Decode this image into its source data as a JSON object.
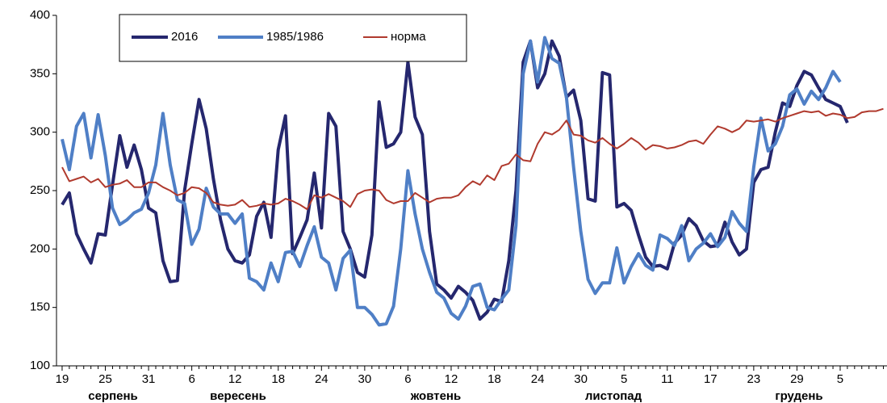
{
  "chart_data": {
    "type": "line",
    "categories": [
      "19",
      null,
      null,
      null,
      null,
      null,
      "25",
      null,
      null,
      null,
      null,
      null,
      "31",
      null,
      null,
      null,
      null,
      null,
      "6",
      null,
      null,
      null,
      null,
      null,
      "12",
      null,
      null,
      null,
      null,
      null,
      "18",
      null,
      null,
      null,
      null,
      null,
      "24",
      null,
      null,
      null,
      null,
      null,
      "30",
      null,
      null,
      null,
      null,
      null,
      "6",
      null,
      null,
      null,
      null,
      null,
      "12",
      null,
      null,
      null,
      null,
      null,
      "18",
      null,
      null,
      null,
      null,
      null,
      "24",
      null,
      null,
      null,
      null,
      null,
      "30",
      null,
      null,
      null,
      null,
      null,
      "5",
      null,
      null,
      null,
      null,
      null,
      "11",
      null,
      null,
      null,
      null,
      null,
      "17",
      null,
      null,
      null,
      null,
      null,
      "23",
      null,
      null,
      null,
      null,
      null,
      "29",
      null,
      null,
      null,
      null,
      null,
      "5",
      null,
      null,
      null,
      null,
      null,
      null
    ],
    "group_labels": [
      "серпень",
      "вересень",
      "жовтень",
      "листопад",
      "грудень"
    ],
    "series": [
      {
        "name": "2016",
        "color": "#25276e",
        "values": [
          238,
          248,
          213,
          200,
          188,
          213,
          212,
          255,
          297,
          270,
          289,
          268,
          235,
          231,
          190,
          172,
          173,
          250,
          290,
          328,
          303,
          260,
          225,
          200,
          190,
          188,
          195,
          228,
          240,
          210,
          285,
          314,
          196,
          210,
          225,
          265,
          218,
          316,
          305,
          215,
          200,
          180,
          176,
          212,
          326,
          287,
          290,
          300,
          360,
          313,
          298,
          215,
          170,
          165,
          158,
          168,
          163,
          156,
          140,
          146,
          157,
          155,
          190,
          250,
          360,
          378,
          338,
          350,
          378,
          365,
          330,
          336,
          310,
          243,
          241,
          351,
          349,
          236,
          239,
          233,
          212,
          193,
          185,
          186,
          183,
          205,
          212,
          226,
          220,
          207,
          202,
          203,
          223,
          206,
          195,
          200,
          257,
          268,
          270,
          300,
          325,
          322,
          340,
          352,
          349,
          338,
          328,
          325,
          322,
          308,
          null,
          null,
          null,
          null,
          null
        ]
      },
      {
        "name": "1985/1986",
        "color": "#4f7fc6",
        "values": [
          294,
          268,
          305,
          316,
          278,
          315,
          280,
          235,
          221,
          225,
          231,
          234,
          248,
          272,
          316,
          272,
          242,
          239,
          204,
          217,
          252,
          236,
          230,
          230,
          222,
          230,
          175,
          172,
          165,
          188,
          172,
          197,
          198,
          185,
          203,
          219,
          193,
          188,
          165,
          192,
          199,
          150,
          150,
          144,
          135,
          136,
          151,
          200,
          267,
          230,
          200,
          180,
          163,
          158,
          145,
          140,
          151,
          168,
          170,
          150,
          148,
          157,
          165,
          220,
          350,
          378,
          343,
          381,
          363,
          359,
          330,
          270,
          215,
          174,
          162,
          171,
          171,
          201,
          171,
          185,
          196,
          186,
          182,
          212,
          209,
          203,
          220,
          190,
          200,
          205,
          213,
          202,
          210,
          232,
          222,
          215,
          270,
          312,
          284,
          290,
          305,
          332,
          337,
          324,
          335,
          328,
          338,
          352,
          343,
          null,
          null,
          null,
          null,
          null,
          null
        ]
      },
      {
        "name": "норма",
        "color": "#b03a2e",
        "values": [
          270,
          258,
          260,
          262,
          257,
          260,
          253,
          255,
          256,
          259,
          253,
          253,
          257,
          257,
          253,
          250,
          246,
          248,
          253,
          252,
          248,
          240,
          238,
          237,
          238,
          242,
          236,
          237,
          239,
          238,
          239,
          243,
          241,
          238,
          234,
          246,
          244,
          247,
          244,
          241,
          236,
          247,
          250,
          251,
          250,
          242,
          239,
          241,
          241,
          248,
          244,
          240,
          243,
          244,
          244,
          246,
          253,
          258,
          255,
          263,
          259,
          271,
          273,
          281,
          276,
          275,
          290,
          300,
          298,
          302,
          310,
          298,
          297,
          293,
          291,
          295,
          290,
          286,
          290,
          295,
          291,
          285,
          289,
          288,
          286,
          287,
          289,
          292,
          293,
          290,
          298,
          305,
          303,
          300,
          303,
          310,
          309,
          310,
          311,
          309,
          312,
          314,
          316,
          318,
          317,
          318,
          314,
          316,
          315,
          312,
          313,
          317,
          318,
          318,
          320
        ]
      }
    ],
    "ylim": [
      100,
      400
    ],
    "yticks": [
      100,
      150,
      200,
      250,
      300,
      350,
      400
    ],
    "grid": false
  }
}
